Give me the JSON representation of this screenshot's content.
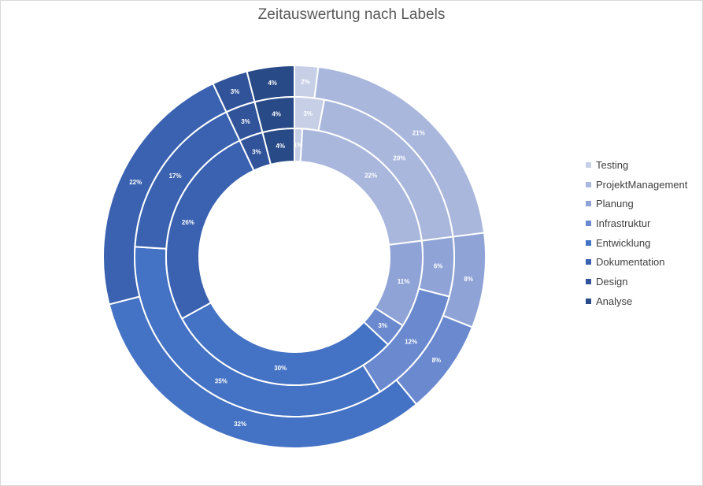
{
  "chart_data": {
    "type": "donut",
    "title": "Zeitauswertung nach Labels",
    "categories": [
      "Testing",
      "ProjektManagement",
      "Planung",
      "Infrastruktur",
      "Entwicklung",
      "Dokumentation",
      "Design",
      "Analyse"
    ],
    "colors": [
      "#c7cfe6",
      "#aab7dd",
      "#8fa3d6",
      "#6a89cf",
      "#4472c4",
      "#3a62b1",
      "#30539a",
      "#284a87"
    ],
    "legend_position": "right",
    "series": [
      {
        "values": [
          2,
          21,
          8,
          8,
          32,
          22,
          3,
          4
        ],
        "labels": [
          "2%",
          "21%",
          "8%",
          "8%",
          "32%",
          "22%",
          "3%",
          "4%"
        ]
      },
      {
        "values": [
          3,
          20,
          6,
          12,
          35,
          17,
          3,
          4
        ],
        "labels": [
          "3%",
          "20%",
          "6%",
          "12%",
          "35%",
          "17%",
          "3%",
          "4%"
        ]
      },
      {
        "values": [
          1,
          22,
          11,
          3,
          30,
          26,
          3,
          4
        ],
        "labels": [
          "1%",
          "22%",
          "11%",
          "3%",
          "30%",
          "26%",
          "3%",
          "4%"
        ]
      }
    ]
  }
}
